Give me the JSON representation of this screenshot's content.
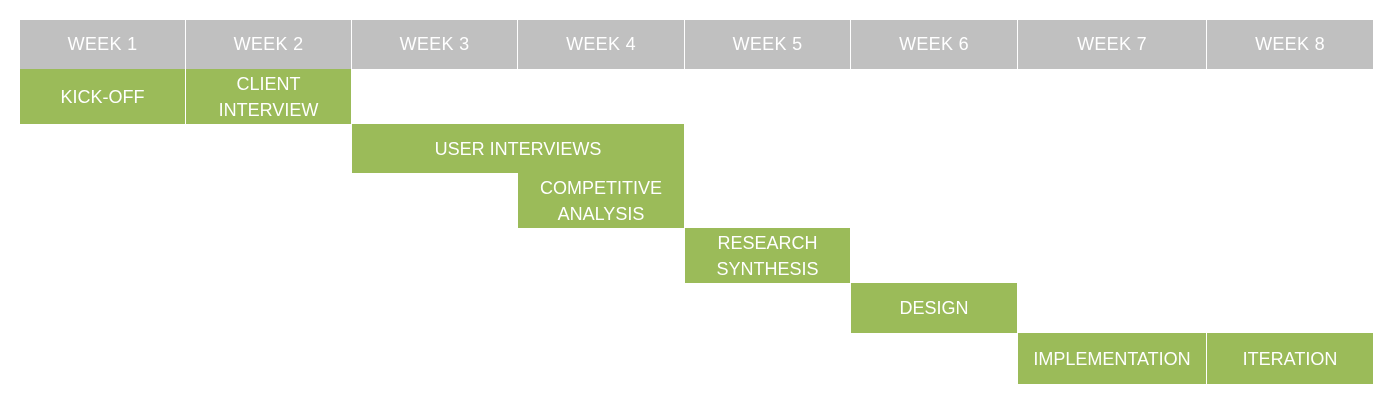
{
  "weeks": [
    "WEEK 1",
    "WEEK 2",
    "WEEK 3",
    "WEEK 4",
    "WEEK 5",
    "WEEK 6",
    "WEEK 7",
    "WEEK 8"
  ],
  "tasks": [
    {
      "label": "KICK-OFF",
      "start_week": 1,
      "end_week": 1
    },
    {
      "label": "CLIENT\nINTERVIEW",
      "start_week": 2,
      "end_week": 2
    },
    {
      "label": "USER INTERVIEWS",
      "start_week": 3,
      "end_week": 4
    },
    {
      "label": "COMPETITIVE\nANALYSIS",
      "start_week": 4,
      "end_week": 4
    },
    {
      "label": "RESEARCH\nSYNTHESIS",
      "start_week": 5,
      "end_week": 5
    },
    {
      "label": "DESIGN",
      "start_week": 6,
      "end_week": 6
    },
    {
      "label": "IMPLEMENTATION",
      "start_week": 7,
      "end_week": 7
    },
    {
      "label": "ITERATION",
      "start_week": 8,
      "end_week": 8
    }
  ],
  "colors": {
    "header_bg": "#c0c0c0",
    "task_bg": "#9bbb59",
    "text": "#ffffff"
  }
}
